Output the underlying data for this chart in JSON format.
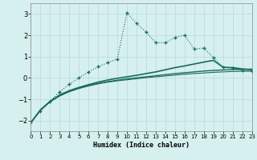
{
  "xlabel": "Humidex (Indice chaleur)",
  "bg_color": "#d6f0ef",
  "grid_color": "#b8d8d5",
  "line_color": "#1a6b5e",
  "xlim": [
    0,
    23
  ],
  "ylim": [
    -2.5,
    3.5
  ],
  "xticks": [
    0,
    1,
    2,
    3,
    4,
    5,
    6,
    7,
    8,
    9,
    10,
    11,
    12,
    13,
    14,
    15,
    16,
    17,
    18,
    19,
    20,
    21,
    22,
    23
  ],
  "yticks": [
    -2,
    -1,
    0,
    1,
    2,
    3
  ],
  "series": [
    {
      "x": [
        0,
        1,
        2,
        3,
        4,
        5,
        6,
        7,
        8,
        9,
        10,
        11,
        12,
        13,
        14,
        15,
        16,
        17,
        18,
        19,
        20,
        21,
        22,
        23
      ],
      "y": [
        -2.1,
        -1.55,
        -1.1,
        -0.65,
        -0.3,
        0.0,
        0.28,
        0.52,
        0.72,
        0.88,
        3.05,
        2.55,
        2.15,
        1.65,
        1.65,
        1.9,
        2.0,
        1.35,
        1.4,
        0.95,
        0.5,
        0.45,
        0.35,
        0.3
      ],
      "marker": "+",
      "markersize": 3.5,
      "linewidth": 0.8,
      "linestyle": ":"
    },
    {
      "x": [
        0,
        1,
        2,
        3,
        4,
        5,
        6,
        7,
        8,
        9,
        10,
        11,
        12,
        13,
        14,
        15,
        16,
        17,
        18,
        19,
        20,
        21,
        22,
        23
      ],
      "y": [
        -2.1,
        -1.5,
        -1.1,
        -0.8,
        -0.6,
        -0.45,
        -0.32,
        -0.2,
        -0.1,
        -0.02,
        0.05,
        0.12,
        0.2,
        0.28,
        0.38,
        0.48,
        0.56,
        0.65,
        0.74,
        0.82,
        0.5,
        0.48,
        0.42,
        0.38
      ],
      "marker": "None",
      "markersize": 0,
      "linewidth": 1.2,
      "linestyle": "-"
    },
    {
      "x": [
        0,
        1,
        2,
        3,
        4,
        5,
        6,
        7,
        8,
        9,
        10,
        11,
        12,
        13,
        14,
        15,
        16,
        17,
        18,
        19,
        20,
        21,
        22,
        23
      ],
      "y": [
        -2.1,
        -1.5,
        -1.1,
        -0.83,
        -0.63,
        -0.48,
        -0.36,
        -0.26,
        -0.18,
        -0.11,
        -0.05,
        0.0,
        0.05,
        0.1,
        0.15,
        0.2,
        0.24,
        0.28,
        0.32,
        0.35,
        0.37,
        0.39,
        0.4,
        0.41
      ],
      "marker": "None",
      "markersize": 0,
      "linewidth": 1.0,
      "linestyle": "-"
    },
    {
      "x": [
        0,
        1,
        2,
        3,
        4,
        5,
        6,
        7,
        8,
        9,
        10,
        11,
        12,
        13,
        14,
        15,
        16,
        17,
        18,
        19,
        20,
        21,
        22,
        23
      ],
      "y": [
        -2.1,
        -1.52,
        -1.13,
        -0.85,
        -0.65,
        -0.5,
        -0.38,
        -0.28,
        -0.2,
        -0.14,
        -0.09,
        -0.04,
        0.01,
        0.05,
        0.09,
        0.13,
        0.17,
        0.2,
        0.23,
        0.26,
        0.28,
        0.3,
        0.31,
        0.32
      ],
      "marker": "None",
      "markersize": 0,
      "linewidth": 0.8,
      "linestyle": "-"
    }
  ]
}
